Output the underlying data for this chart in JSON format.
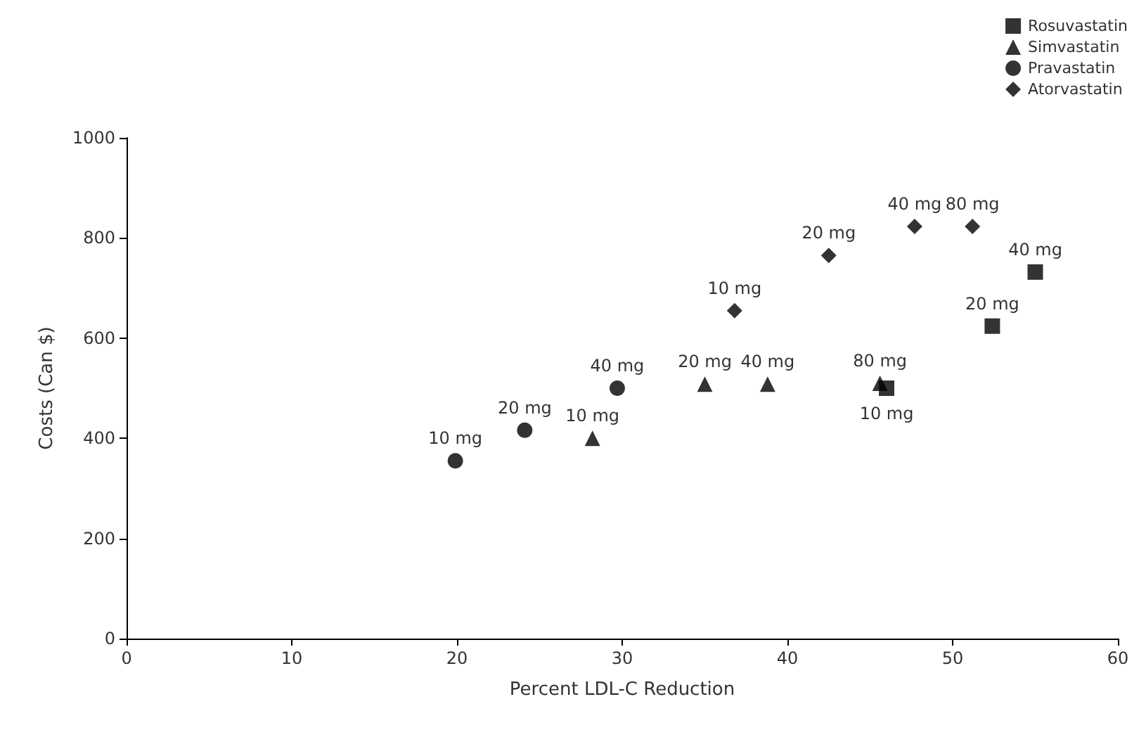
{
  "chart_data": {
    "type": "scatter",
    "xlabel": "Percent LDL-C Reduction",
    "ylabel": "Costs (Can $)",
    "xlim": [
      0,
      60
    ],
    "xticks": [
      0,
      10,
      20,
      30,
      40,
      50,
      60
    ],
    "ylim": [
      0,
      1000
    ],
    "yticks": [
      0,
      200,
      400,
      600,
      800,
      1000
    ],
    "grid": false,
    "legend": "top right",
    "series": [
      {
        "name": "Rosuvastatin",
        "color": "#000000",
        "marker": "square",
        "x": [
          46.0,
          52.4,
          55.0
        ],
        "values": [
          500,
          624,
          732
        ]
      },
      {
        "name": "Simvastatin",
        "color": "#000000",
        "marker": "triangle",
        "x": [
          28.2,
          35.0,
          38.8,
          45.6
        ],
        "values": [
          400,
          508,
          508,
          510
        ]
      },
      {
        "name": "Pravastatin",
        "color": "#000000",
        "marker": "circle",
        "x": [
          19.9,
          24.1,
          29.7
        ],
        "values": [
          355,
          416,
          500
        ]
      },
      {
        "name": "Atorvastatin",
        "color": "#000000",
        "marker": "diamond",
        "x": [
          36.8,
          42.5,
          47.7,
          51.2
        ],
        "values": [
          655,
          765,
          823,
          823
        ]
      }
    ],
    "annotations": [
      {
        "text": "10 mg",
        "x": 46.0,
        "y": 500
      },
      {
        "text": "20 mg",
        "x": 52.4,
        "y": 624
      },
      {
        "text": "40 mg",
        "x": 55.0,
        "y": 732
      },
      {
        "text": "10 mg",
        "x": 28.2,
        "y": 400
      },
      {
        "text": "20 mg",
        "x": 35.0,
        "y": 508
      },
      {
        "text": "40 mg",
        "x": 38.8,
        "y": 508
      },
      {
        "text": "80 mg",
        "x": 45.6,
        "y": 510
      },
      {
        "text": "10 mg",
        "x": 19.9,
        "y": 355
      },
      {
        "text": "20 mg",
        "x": 24.1,
        "y": 416
      },
      {
        "text": "40 mg",
        "x": 29.7,
        "y": 500
      },
      {
        "text": "10 mg",
        "x": 36.8,
        "y": 655
      },
      {
        "text": "20 mg",
        "x": 42.5,
        "y": 765
      },
      {
        "text": "40 mg",
        "x": 47.7,
        "y": 823
      },
      {
        "text": "80 mg",
        "x": 51.2,
        "y": 823
      }
    ]
  }
}
